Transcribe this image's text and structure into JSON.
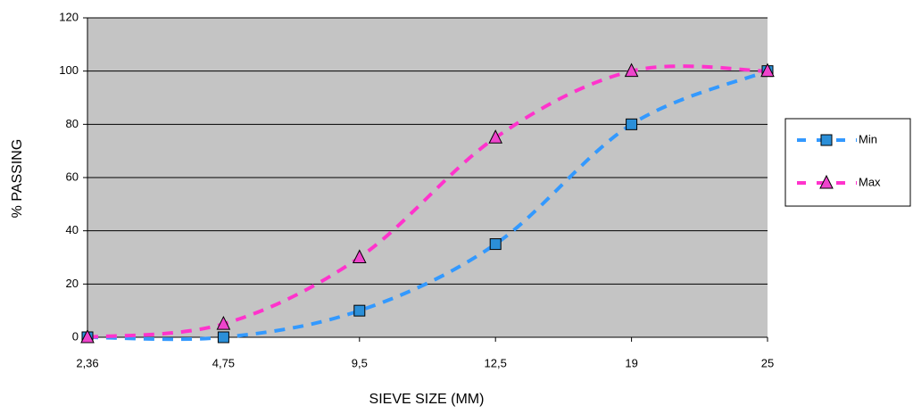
{
  "chart_data": {
    "type": "line",
    "xlabel": "SIEVE SIZE (MM)",
    "ylabel": "% PASSING",
    "categories": [
      "2,36",
      "4,75",
      "9,5",
      "12,5",
      "19",
      "25"
    ],
    "series": [
      {
        "name": "Min",
        "color": "#3399ff",
        "marker_color": "#2b8fd8",
        "marker": "square",
        "values": [
          0,
          0,
          10,
          35,
          80,
          100
        ]
      },
      {
        "name": "Max",
        "color": "#ff33cc",
        "marker_color": "#ee44cc",
        "marker": "triangle",
        "values": [
          0,
          5,
          30,
          75,
          100,
          100
        ]
      }
    ],
    "ylim": [
      0,
      120
    ],
    "yticks": [
      0,
      20,
      40,
      60,
      80,
      100,
      120
    ],
    "grid": true,
    "smooth": true,
    "dashed": true,
    "legend": "right",
    "plot_background": "#c4c4c4"
  }
}
